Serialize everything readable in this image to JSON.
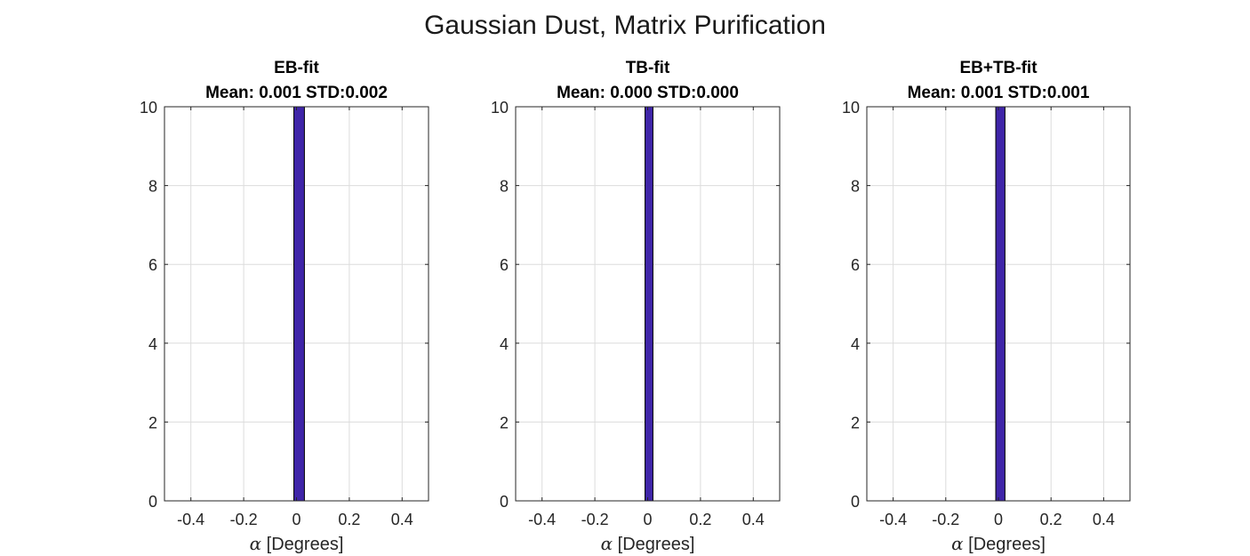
{
  "figure": {
    "suptitle": "Gaussian Dust, Matrix Purification",
    "bar_color": "#3f25a8"
  },
  "chart_data": [
    {
      "type": "bar",
      "title": "EB-fit",
      "subtitle": "Mean: 0.001 STD:0.002",
      "xlabel_symbol": "α",
      "xlabel": "[Degrees]",
      "ylabel": "",
      "xlim": [
        -0.5,
        0.5
      ],
      "ylim": [
        0,
        10
      ],
      "xticks": [
        "-0.4",
        "-0.2",
        "0",
        "0.2",
        "0.4"
      ],
      "xtick_values": [
        -0.4,
        -0.2,
        0,
        0.2,
        0.4
      ],
      "yticks": [
        "0",
        "2",
        "4",
        "6",
        "8",
        "10"
      ],
      "ytick_values": [
        0,
        2,
        4,
        6,
        8,
        10
      ],
      "grid": true,
      "bins": [
        {
          "x0": -0.01,
          "x1": 0.03,
          "count": 10
        }
      ]
    },
    {
      "type": "bar",
      "title": "TB-fit",
      "subtitle": "Mean: 0.000 STD:0.000",
      "xlabel_symbol": "α",
      "xlabel": "[Degrees]",
      "ylabel": "",
      "xlim": [
        -0.5,
        0.5
      ],
      "ylim": [
        0,
        10
      ],
      "xticks": [
        "-0.4",
        "-0.2",
        "0",
        "0.2",
        "0.4"
      ],
      "xtick_values": [
        -0.4,
        -0.2,
        0,
        0.2,
        0.4
      ],
      "yticks": [
        "0",
        "2",
        "4",
        "6",
        "8",
        "10"
      ],
      "ytick_values": [
        0,
        2,
        4,
        6,
        8,
        10
      ],
      "grid": true,
      "bins": [
        {
          "x0": -0.01,
          "x1": 0.02,
          "count": 10
        }
      ]
    },
    {
      "type": "bar",
      "title": "EB+TB-fit",
      "subtitle": "Mean: 0.001 STD:0.001",
      "xlabel_symbol": "α",
      "xlabel": "[Degrees]",
      "ylabel": "",
      "xlim": [
        -0.5,
        0.5
      ],
      "ylim": [
        0,
        10
      ],
      "xticks": [
        "-0.4",
        "-0.2",
        "0",
        "0.2",
        "0.4"
      ],
      "xtick_values": [
        -0.4,
        -0.2,
        0,
        0.2,
        0.4
      ],
      "yticks": [
        "0",
        "2",
        "4",
        "6",
        "8",
        "10"
      ],
      "ytick_values": [
        0,
        2,
        4,
        6,
        8,
        10
      ],
      "grid": true,
      "bins": [
        {
          "x0": -0.01,
          "x1": 0.025,
          "count": 10
        }
      ]
    }
  ]
}
